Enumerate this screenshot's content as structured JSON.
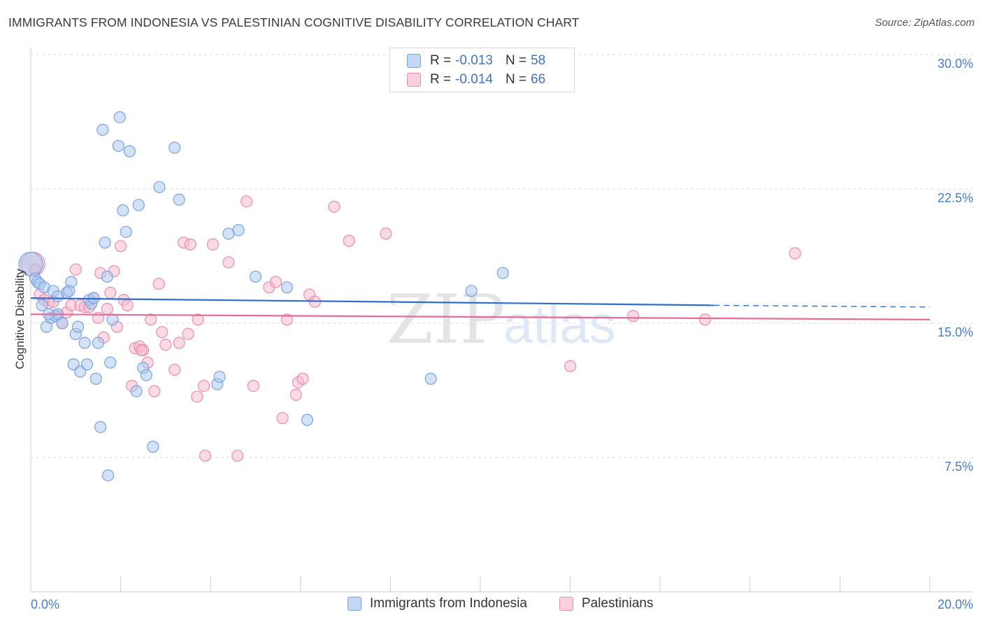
{
  "title": "IMMIGRANTS FROM INDONESIA VS PALESTINIAN COGNITIVE DISABILITY CORRELATION CHART",
  "source": "Source: ZipAtlas.com",
  "watermark": {
    "part1": "ZIP",
    "part2": "atlas"
  },
  "legend": {
    "series1": {
      "r_label": "R =",
      "r_value": "-0.013",
      "n_label": "N =",
      "n_value": "58"
    },
    "series2": {
      "r_label": "R =",
      "r_value": "-0.014",
      "n_label": "N =",
      "n_value": "66"
    }
  },
  "colors": {
    "blue_fill": "#a9c6ef",
    "blue_stroke": "#7aa3dc",
    "blue_line": "#2f6fcc",
    "pink_fill": "#f5b8cb",
    "pink_stroke": "#ea8eab",
    "pink_line": "#e56a98",
    "tick_text": "#4a7cc9",
    "grid": "#dddddd"
  },
  "chart_data": {
    "type": "scatter",
    "title": "IMMIGRANTS FROM INDONESIA VS PALESTINIAN COGNITIVE DISABILITY CORRELATION CHART",
    "xlabel": "",
    "ylabel": "Cognitive Disability",
    "xlim": [
      0,
      20
    ],
    "ylim": [
      0,
      30
    ],
    "x_tick_labels": [
      "0.0%",
      "20.0%"
    ],
    "y_ticks": [
      7.5,
      15.0,
      22.5,
      30.0
    ],
    "y_tick_labels": [
      "7.5%",
      "15.0%",
      "22.5%",
      "30.0%"
    ],
    "grid": true,
    "legend_position": "top-center",
    "series": [
      {
        "name": "Immigrants from Indonesia",
        "color": "blue",
        "trend": {
          "x0": 0,
          "y0": 16.4,
          "x1": 15.2,
          "y1": 16.0,
          "dash_to_x": 20,
          "dash_to_y": 15.9
        },
        "points": [
          [
            0.0,
            18.3
          ],
          [
            0.1,
            17.5
          ],
          [
            0.15,
            17.3
          ],
          [
            0.2,
            17.2
          ],
          [
            0.25,
            16.0
          ],
          [
            0.3,
            17.0
          ],
          [
            0.35,
            14.8
          ],
          [
            0.45,
            15.3
          ],
          [
            0.5,
            16.8
          ],
          [
            0.55,
            15.4
          ],
          [
            0.6,
            15.5
          ],
          [
            0.7,
            15.0
          ],
          [
            0.8,
            16.7
          ],
          [
            0.9,
            17.3
          ],
          [
            0.95,
            12.7
          ],
          [
            1.0,
            14.4
          ],
          [
            1.05,
            14.8
          ],
          [
            1.1,
            12.3
          ],
          [
            1.2,
            13.9
          ],
          [
            1.25,
            12.7
          ],
          [
            1.3,
            16.3
          ],
          [
            1.35,
            16.1
          ],
          [
            1.45,
            11.9
          ],
          [
            1.5,
            13.9
          ],
          [
            1.55,
            9.2
          ],
          [
            1.6,
            25.8
          ],
          [
            1.65,
            19.5
          ],
          [
            1.7,
            17.6
          ],
          [
            1.72,
            6.5
          ],
          [
            1.77,
            12.8
          ],
          [
            1.82,
            15.2
          ],
          [
            1.95,
            24.9
          ],
          [
            1.98,
            26.5
          ],
          [
            2.05,
            21.3
          ],
          [
            2.12,
            20.1
          ],
          [
            2.2,
            24.6
          ],
          [
            2.35,
            11.2
          ],
          [
            2.4,
            21.6
          ],
          [
            2.5,
            12.5
          ],
          [
            2.57,
            12.1
          ],
          [
            2.72,
            8.1
          ],
          [
            2.86,
            22.6
          ],
          [
            3.2,
            24.8
          ],
          [
            3.3,
            21.9
          ],
          [
            4.15,
            11.6
          ],
          [
            4.2,
            12.0
          ],
          [
            4.4,
            20.0
          ],
          [
            4.62,
            20.2
          ],
          [
            5.0,
            17.6
          ],
          [
            5.7,
            17.0
          ],
          [
            6.15,
            9.6
          ],
          [
            8.9,
            11.9
          ],
          [
            9.8,
            16.8
          ],
          [
            10.5,
            17.8
          ],
          [
            0.6,
            16.5
          ],
          [
            0.4,
            15.5
          ],
          [
            1.4,
            16.4
          ],
          [
            0.85,
            16.8
          ]
        ]
      },
      {
        "name": "Palestinians",
        "color": "pink",
        "trend": {
          "x0": 0,
          "y0": 15.5,
          "x1": 20,
          "y1": 15.2
        },
        "points": [
          [
            0.05,
            18.3
          ],
          [
            0.1,
            18.0
          ],
          [
            0.2,
            16.6
          ],
          [
            0.3,
            16.3
          ],
          [
            0.4,
            16.1
          ],
          [
            0.5,
            16.2
          ],
          [
            0.6,
            15.5
          ],
          [
            0.7,
            15.0
          ],
          [
            0.8,
            15.6
          ],
          [
            0.9,
            16.0
          ],
          [
            1.0,
            18.0
          ],
          [
            1.1,
            16.0
          ],
          [
            1.2,
            15.9
          ],
          [
            1.3,
            15.9
          ],
          [
            1.4,
            16.4
          ],
          [
            1.5,
            15.3
          ],
          [
            1.55,
            17.8
          ],
          [
            1.62,
            14.2
          ],
          [
            1.7,
            15.8
          ],
          [
            1.77,
            16.7
          ],
          [
            1.85,
            17.9
          ],
          [
            1.92,
            14.8
          ],
          [
            2.0,
            19.3
          ],
          [
            2.07,
            16.3
          ],
          [
            2.15,
            16.0
          ],
          [
            2.25,
            11.5
          ],
          [
            2.32,
            13.6
          ],
          [
            2.42,
            13.7
          ],
          [
            2.5,
            13.5
          ],
          [
            2.6,
            12.8
          ],
          [
            2.67,
            15.2
          ],
          [
            2.75,
            11.2
          ],
          [
            2.85,
            17.2
          ],
          [
            2.92,
            14.5
          ],
          [
            3.0,
            13.8
          ],
          [
            3.2,
            12.4
          ],
          [
            3.3,
            13.9
          ],
          [
            3.4,
            19.5
          ],
          [
            3.5,
            14.4
          ],
          [
            3.55,
            19.4
          ],
          [
            3.7,
            10.9
          ],
          [
            3.72,
            15.2
          ],
          [
            3.85,
            11.5
          ],
          [
            3.88,
            7.6
          ],
          [
            4.05,
            19.4
          ],
          [
            4.4,
            18.4
          ],
          [
            4.6,
            7.6
          ],
          [
            4.8,
            21.8
          ],
          [
            4.95,
            11.5
          ],
          [
            5.3,
            17.0
          ],
          [
            5.45,
            17.3
          ],
          [
            5.6,
            9.7
          ],
          [
            5.7,
            15.2
          ],
          [
            5.9,
            11.0
          ],
          [
            5.95,
            11.7
          ],
          [
            6.05,
            11.9
          ],
          [
            6.2,
            16.6
          ],
          [
            6.32,
            16.2
          ],
          [
            6.75,
            21.5
          ],
          [
            7.08,
            19.6
          ],
          [
            7.9,
            20.0
          ],
          [
            12.0,
            12.6
          ],
          [
            13.4,
            15.4
          ],
          [
            15.0,
            15.2
          ],
          [
            17.0,
            18.9
          ],
          [
            2.46,
            13.5
          ]
        ]
      }
    ]
  },
  "bottom_legend": {
    "item1": "Immigrants from Indonesia",
    "item2": "Palestinians"
  }
}
